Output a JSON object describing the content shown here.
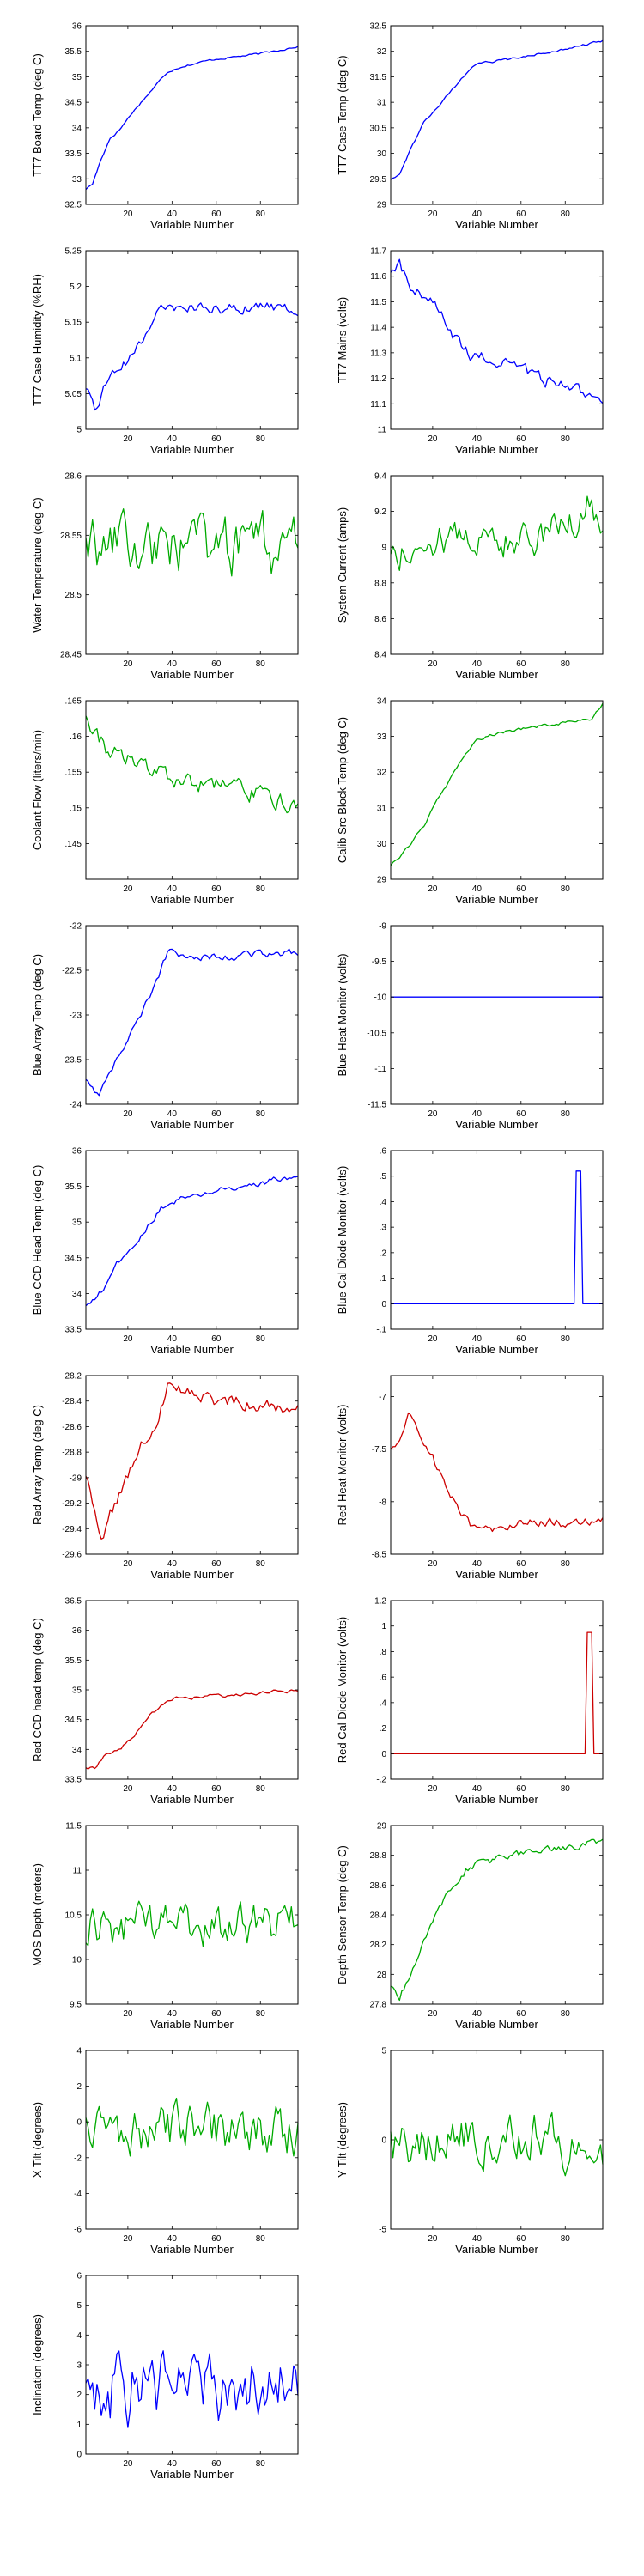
{
  "chart_data": [
    {
      "id": "tt7_board_temp",
      "type": "line",
      "color": "#0000ff",
      "ylabel": "TT7 Board Temp (deg C)",
      "xlabel": "Variable Number",
      "xlim": [
        1,
        97
      ],
      "ylim": [
        32.5,
        36
      ],
      "yticks": [
        32.5,
        33,
        33.5,
        34,
        34.5,
        35,
        35.5,
        36
      ],
      "xticks": [
        20,
        40,
        60,
        80
      ],
      "trend": [
        [
          1,
          32.8
        ],
        [
          4,
          32.9
        ],
        [
          8,
          33.4
        ],
        [
          12,
          33.8
        ],
        [
          16,
          33.95
        ],
        [
          22,
          34.3
        ],
        [
          28,
          34.6
        ],
        [
          34,
          34.9
        ],
        [
          38,
          35.1
        ],
        [
          44,
          35.2
        ],
        [
          60,
          35.35
        ],
        [
          80,
          35.45
        ],
        [
          97,
          35.6
        ]
      ],
      "noise": 0.02
    },
    {
      "id": "tt7_case_temp",
      "type": "line",
      "color": "#0000ff",
      "ylabel": "TT7 Case Temp (deg C)",
      "xlabel": "Variable Number",
      "xlim": [
        1,
        97
      ],
      "ylim": [
        29,
        32.5
      ],
      "yticks": [
        29,
        29.5,
        30,
        30.5,
        31,
        31.5,
        32,
        32.5
      ],
      "xticks": [
        20,
        40,
        60,
        80
      ],
      "trend": [
        [
          1,
          29.5
        ],
        [
          5,
          29.6
        ],
        [
          10,
          30.1
        ],
        [
          16,
          30.6
        ],
        [
          22,
          30.9
        ],
        [
          28,
          31.2
        ],
        [
          34,
          31.5
        ],
        [
          40,
          31.75
        ],
        [
          55,
          31.85
        ],
        [
          75,
          32.0
        ],
        [
          97,
          32.2
        ]
      ],
      "noise": 0.02
    },
    {
      "id": "tt7_case_humidity",
      "type": "line",
      "color": "#0000ff",
      "ylabel": "TT7 Case Humidity (%RH)",
      "xlabel": "Variable Number",
      "xlim": [
        1,
        97
      ],
      "ylim": [
        5,
        5.25
      ],
      "yticks": [
        5,
        5.05,
        5.1,
        5.15,
        5.2,
        5.25
      ],
      "xticks": [
        20,
        40,
        60,
        80
      ],
      "trend": [
        [
          1,
          5.05
        ],
        [
          5,
          5.03
        ],
        [
          10,
          5.06
        ],
        [
          15,
          5.09
        ],
        [
          20,
          5.1
        ],
        [
          25,
          5.12
        ],
        [
          30,
          5.14
        ],
        [
          35,
          5.165
        ],
        [
          40,
          5.17
        ],
        [
          60,
          5.17
        ],
        [
          97,
          5.17
        ]
      ],
      "noise": 0.008
    },
    {
      "id": "tt7_mains",
      "type": "line",
      "color": "#0000ff",
      "ylabel": "TT7 Mains  (volts)",
      "xlabel": "Variable Number",
      "xlim": [
        1,
        97
      ],
      "ylim": [
        11,
        11.7
      ],
      "yticks": [
        11,
        11.1,
        11.2,
        11.3,
        11.4,
        11.5,
        11.6,
        11.7
      ],
      "xticks": [
        20,
        40,
        60,
        80
      ],
      "trend": [
        [
          1,
          11.6
        ],
        [
          5,
          11.65
        ],
        [
          10,
          11.55
        ],
        [
          20,
          11.5
        ],
        [
          30,
          11.35
        ],
        [
          40,
          11.28
        ],
        [
          55,
          11.25
        ],
        [
          70,
          11.2
        ],
        [
          85,
          11.15
        ],
        [
          97,
          11.12
        ]
      ],
      "noise": 0.025
    },
    {
      "id": "water_temperature",
      "type": "line",
      "color": "#00aa00",
      "ylabel": "Water Temperature (deg C)",
      "xlabel": "Variable Number",
      "xlim": [
        1,
        97
      ],
      "ylim": [
        28.45,
        28.6
      ],
      "yticks": [
        28.45,
        28.5,
        28.55,
        28.6
      ],
      "xticks": [
        20,
        40,
        60,
        80
      ],
      "trend": [
        [
          1,
          28.54
        ],
        [
          97,
          28.54
        ]
      ],
      "noise": 0.022
    },
    {
      "id": "system_current",
      "type": "line",
      "color": "#00aa00",
      "ylabel": "System Current (amps)",
      "xlabel": "Variable Number",
      "xlim": [
        1,
        97
      ],
      "ylim": [
        8.4,
        9.4
      ],
      "yticks": [
        8.4,
        8.6,
        8.8,
        9,
        9.2,
        9.4
      ],
      "xticks": [
        20,
        40,
        60,
        80
      ],
      "trend": [
        [
          1,
          8.95
        ],
        [
          20,
          9.05
        ],
        [
          60,
          9.05
        ],
        [
          80,
          9.1
        ],
        [
          90,
          9.25
        ],
        [
          97,
          9.1
        ]
      ],
      "noise": 0.09
    },
    {
      "id": "coolant_flow",
      "type": "line",
      "color": "#00aa00",
      "ylabel": "Coolant Flow (liters/min)",
      "xlabel": "Variable Number",
      "xlim": [
        1,
        97
      ],
      "ylim": [
        0.14,
        0.165
      ],
      "yticks": [
        0.145,
        0.15,
        0.155,
        0.16,
        0.165
      ],
      "xticks": [
        20,
        40,
        60,
        80
      ],
      "trend": [
        [
          1,
          0.163
        ],
        [
          5,
          0.161
        ],
        [
          10,
          0.158
        ],
        [
          20,
          0.157
        ],
        [
          30,
          0.155
        ],
        [
          40,
          0.154
        ],
        [
          60,
          0.153
        ],
        [
          80,
          0.152
        ],
        [
          97,
          0.15
        ]
      ],
      "noise": 0.0012
    },
    {
      "id": "calib_src_block_temp",
      "type": "line",
      "color": "#00aa00",
      "ylabel": "Calib Src Block Temp (deg C)",
      "xlabel": "Variable Number",
      "xlim": [
        1,
        97
      ],
      "ylim": [
        29,
        34
      ],
      "yticks": [
        29,
        30,
        31,
        32,
        33,
        34
      ],
      "xticks": [
        20,
        40,
        60,
        80
      ],
      "trend": [
        [
          1,
          29.4
        ],
        [
          5,
          29.6
        ],
        [
          10,
          30
        ],
        [
          16,
          30.5
        ],
        [
          22,
          31.2
        ],
        [
          28,
          31.8
        ],
        [
          34,
          32.4
        ],
        [
          40,
          32.9
        ],
        [
          50,
          33.1
        ],
        [
          70,
          33.3
        ],
        [
          92,
          33.5
        ],
        [
          97,
          33.9
        ]
      ],
      "noise": 0.04
    },
    {
      "id": "blue_array_temp",
      "type": "line",
      "color": "#0000ff",
      "ylabel": "Blue Array Temp (deg C)",
      "xlabel": "Variable Number",
      "xlim": [
        1,
        97
      ],
      "ylim": [
        -24,
        -22
      ],
      "yticks": [
        -24,
        -23.5,
        -23,
        -22.5,
        -22
      ],
      "xticks": [
        20,
        40,
        60,
        80
      ],
      "trend": [
        [
          1,
          -23.7
        ],
        [
          4,
          -23.8
        ],
        [
          7,
          -23.9
        ],
        [
          10,
          -23.7
        ],
        [
          15,
          -23.5
        ],
        [
          20,
          -23.3
        ],
        [
          26,
          -23.0
        ],
        [
          32,
          -22.7
        ],
        [
          38,
          -22.3
        ],
        [
          60,
          -22.35
        ],
        [
          97,
          -22.3
        ]
      ],
      "noise": 0.04
    },
    {
      "id": "blue_heat_monitor",
      "type": "line",
      "color": "#0000ff",
      "ylabel": "Blue Heat Monitor (volts)",
      "xlabel": "Variable Number",
      "xlim": [
        1,
        97
      ],
      "ylim": [
        -11.5,
        -9
      ],
      "yticks": [
        -11.5,
        -11,
        -10.5,
        -10,
        -9.5,
        -9
      ],
      "xticks": [
        20,
        40,
        60,
        80
      ],
      "trend": [
        [
          1,
          -10
        ],
        [
          97,
          -10
        ]
      ],
      "noise": 0
    },
    {
      "id": "blue_ccd_head_temp",
      "type": "line",
      "color": "#0000ff",
      "ylabel": "Blue CCD Head Temp (deg C)",
      "xlabel": "Variable Number",
      "xlim": [
        1,
        97
      ],
      "ylim": [
        33.5,
        36
      ],
      "yticks": [
        33.5,
        34,
        34.5,
        35,
        35.5,
        36
      ],
      "xticks": [
        20,
        40,
        60,
        80
      ],
      "trend": [
        [
          1,
          33.8
        ],
        [
          5,
          33.9
        ],
        [
          10,
          34.1
        ],
        [
          15,
          34.4
        ],
        [
          20,
          34.6
        ],
        [
          25,
          34.8
        ],
        [
          30,
          35.0
        ],
        [
          35,
          35.2
        ],
        [
          40,
          35.3
        ],
        [
          60,
          35.45
        ],
        [
          80,
          35.55
        ],
        [
          97,
          35.65
        ]
      ],
      "noise": 0.04
    },
    {
      "id": "blue_cal_diode_monitor",
      "type": "line",
      "color": "#0000ff",
      "ylabel": "Blue Cal Diode Monitor (volts)",
      "xlabel": "Variable Number",
      "xlim": [
        1,
        97
      ],
      "ylim": [
        -0.1,
        0.6
      ],
      "yticks": [
        -0.1,
        0,
        0.1,
        0.2,
        0.3,
        0.4,
        0.5,
        0.6
      ],
      "xticks": [
        20,
        40,
        60,
        80
      ],
      "trend": [
        [
          1,
          0
        ],
        [
          84,
          0
        ],
        [
          85,
          0.52
        ],
        [
          87,
          0.52
        ],
        [
          88,
          0
        ],
        [
          97,
          0
        ]
      ],
      "noise": 0
    },
    {
      "id": "red_array_temp",
      "type": "line",
      "color": "#cc0000",
      "ylabel": "Red Array Temp (deg C)",
      "xlabel": "Variable Number",
      "xlim": [
        1,
        97
      ],
      "ylim": [
        -29.6,
        -28.2
      ],
      "yticks": [
        -29.6,
        -29.4,
        -29.2,
        -29,
        -28.8,
        -28.6,
        -28.4,
        -28.2
      ],
      "xticks": [
        20,
        40,
        60,
        80
      ],
      "trend": [
        [
          1,
          -29.0
        ],
        [
          4,
          -29.2
        ],
        [
          8,
          -29.5
        ],
        [
          12,
          -29.3
        ],
        [
          17,
          -29.1
        ],
        [
          22,
          -28.9
        ],
        [
          28,
          -28.7
        ],
        [
          34,
          -28.5
        ],
        [
          38,
          -28.3
        ],
        [
          60,
          -28.4
        ],
        [
          97,
          -28.45
        ]
      ],
      "noise": 0.05
    },
    {
      "id": "red_heat_monitor",
      "type": "line",
      "color": "#cc0000",
      "ylabel": "Red Heat Monitor (volts)",
      "xlabel": "Variable Number",
      "xlim": [
        1,
        97
      ],
      "ylim": [
        -8.5,
        -6.8
      ],
      "yticks": [
        -8.5,
        -8,
        -7.5,
        -7
      ],
      "xticks": [
        20,
        40,
        60,
        80
      ],
      "trend": [
        [
          1,
          -7.5
        ],
        [
          5,
          -7.4
        ],
        [
          9,
          -7.15
        ],
        [
          13,
          -7.3
        ],
        [
          18,
          -7.5
        ],
        [
          24,
          -7.75
        ],
        [
          30,
          -8.0
        ],
        [
          36,
          -8.2
        ],
        [
          40,
          -8.3
        ],
        [
          60,
          -8.2
        ],
        [
          97,
          -8.2
        ]
      ],
      "noise": 0.045
    },
    {
      "id": "red_ccd_head_temp",
      "type": "line",
      "color": "#cc0000",
      "ylabel": "Red CCD head temp (deg C)",
      "xlabel": "Variable Number",
      "xlim": [
        1,
        97
      ],
      "ylim": [
        33.5,
        36.5
      ],
      "yticks": [
        33.5,
        34,
        34.5,
        35,
        35.5,
        36,
        36.5
      ],
      "xticks": [
        20,
        40,
        60,
        80
      ],
      "trend": [
        [
          1,
          33.7
        ],
        [
          5,
          33.7
        ],
        [
          10,
          33.9
        ],
        [
          16,
          34.0
        ],
        [
          22,
          34.2
        ],
        [
          28,
          34.5
        ],
        [
          34,
          34.7
        ],
        [
          40,
          34.85
        ],
        [
          60,
          34.9
        ],
        [
          80,
          34.95
        ],
        [
          97,
          35.0
        ]
      ],
      "noise": 0.03
    },
    {
      "id": "red_cal_diode_monitor",
      "type": "line",
      "color": "#cc0000",
      "ylabel": "Red Cal Diode Monitor (volts)",
      "xlabel": "Variable Number",
      "xlim": [
        1,
        97
      ],
      "ylim": [
        -0.2,
        1.2
      ],
      "yticks": [
        -0.2,
        0,
        0.2,
        0.4,
        0.6,
        0.8,
        1,
        1.2
      ],
      "xticks": [
        20,
        40,
        60,
        80
      ],
      "trend": [
        [
          1,
          0
        ],
        [
          89,
          0
        ],
        [
          90,
          0.95
        ],
        [
          92,
          0.95
        ],
        [
          93,
          0
        ],
        [
          97,
          0
        ]
      ],
      "noise": 0
    },
    {
      "id": "mos_depth",
      "type": "line",
      "color": "#00aa00",
      "ylabel": "MOS Depth  (meters)",
      "xlabel": "Variable Number",
      "xlim": [
        1,
        97
      ],
      "ylim": [
        9.5,
        11.5
      ],
      "yticks": [
        9.5,
        10,
        10.5,
        11,
        11.5
      ],
      "xticks": [
        20,
        40,
        60,
        80
      ],
      "trend": [
        [
          1,
          10.35
        ],
        [
          97,
          10.4
        ]
      ],
      "noise": 0.22
    },
    {
      "id": "depth_sensor_temp",
      "type": "line",
      "color": "#00aa00",
      "ylabel": "Depth Sensor Temp (deg C)",
      "xlabel": "Variable Number",
      "xlim": [
        1,
        97
      ],
      "ylim": [
        27.8,
        29
      ],
      "yticks": [
        27.8,
        28,
        28.2,
        28.4,
        28.6,
        28.8,
        29
      ],
      "xticks": [
        20,
        40,
        60,
        80
      ],
      "trend": [
        [
          1,
          27.9
        ],
        [
          5,
          27.85
        ],
        [
          10,
          28.0
        ],
        [
          15,
          28.2
        ],
        [
          20,
          28.35
        ],
        [
          25,
          28.5
        ],
        [
          30,
          28.6
        ],
        [
          35,
          28.7
        ],
        [
          40,
          28.75
        ],
        [
          60,
          28.8
        ],
        [
          80,
          28.85
        ],
        [
          97,
          28.9
        ]
      ],
      "noise": 0.025
    },
    {
      "id": "x_tilt",
      "type": "line",
      "color": "#00aa00",
      "ylabel": "X Tilt  (degrees)",
      "xlabel": "Variable Number",
      "xlim": [
        1,
        97
      ],
      "ylim": [
        -6,
        4
      ],
      "yticks": [
        -6,
        -4,
        -2,
        0,
        2,
        4
      ],
      "xticks": [
        20,
        40,
        60,
        80
      ],
      "trend": [
        [
          1,
          -0.5
        ],
        [
          97,
          -0.5
        ]
      ],
      "noise": 1.3
    },
    {
      "id": "y_tilt",
      "type": "line",
      "color": "#00aa00",
      "ylabel": "Y Tilt  (degrees)",
      "xlabel": "Variable Number",
      "xlim": [
        1,
        97
      ],
      "ylim": [
        -5,
        5
      ],
      "yticks": [
        -5,
        0,
        5
      ],
      "xticks": [
        20,
        40,
        60,
        80
      ],
      "trend": [
        [
          1,
          0
        ],
        [
          97,
          0
        ]
      ],
      "noise": 1.4
    },
    {
      "id": "inclination",
      "type": "line",
      "color": "#0000ff",
      "ylabel": "Inclination  (degrees)",
      "xlabel": "Variable Number",
      "xlim": [
        1,
        97
      ],
      "ylim": [
        0,
        6
      ],
      "yticks": [
        0,
        1,
        2,
        3,
        4,
        5,
        6
      ],
      "xticks": [
        20,
        40,
        60,
        80
      ],
      "trend": [
        [
          1,
          2.3
        ],
        [
          97,
          2.3
        ]
      ],
      "noise": 1.1
    }
  ]
}
